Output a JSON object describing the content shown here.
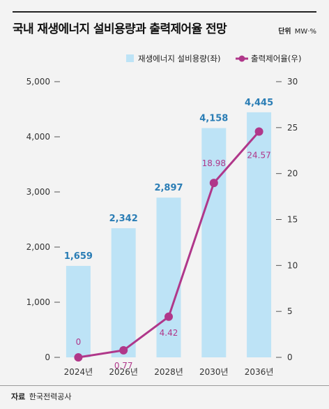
{
  "title": "국내 재생에너지 설비용량과 출력제어율 전망",
  "unit_label": "단위",
  "unit_value": "MW·%",
  "source_label": "자료",
  "source_value": "한국전력공사",
  "chart_data": {
    "type": "bar",
    "categories": [
      "2024년",
      "2026년",
      "2028년",
      "2030년",
      "2036년"
    ],
    "series": [
      {
        "name": "재생에너지 설비용량(좌)",
        "type": "bar",
        "axis": "left",
        "color": "#bde3f6",
        "values": [
          1659,
          2342,
          2897,
          4158,
          4445
        ],
        "labels": [
          "1,659",
          "2,342",
          "2,897",
          "4,158",
          "4,445"
        ]
      },
      {
        "name": "출력제어율(우)",
        "type": "line",
        "axis": "right",
        "color": "#b0378a",
        "values": [
          0,
          0.77,
          4.42,
          18.98,
          24.57
        ],
        "labels": [
          "0",
          "0.77",
          "4.42",
          "18.98",
          "24.57"
        ]
      }
    ],
    "y_left": {
      "range": [
        0,
        5000
      ],
      "ticks": [
        0,
        1000,
        2000,
        3000,
        4000,
        5000
      ],
      "tick_labels": [
        "0",
        "1,000",
        "2,000",
        "3,000",
        "4,000",
        "5,000"
      ]
    },
    "y_right": {
      "range": [
        0,
        30
      ],
      "ticks": [
        0,
        5,
        10,
        15,
        20,
        25,
        30
      ],
      "tick_labels": [
        "0",
        "5",
        "10",
        "15",
        "20",
        "25",
        "30"
      ]
    },
    "legend_position": "top-right",
    "grid": false
  }
}
